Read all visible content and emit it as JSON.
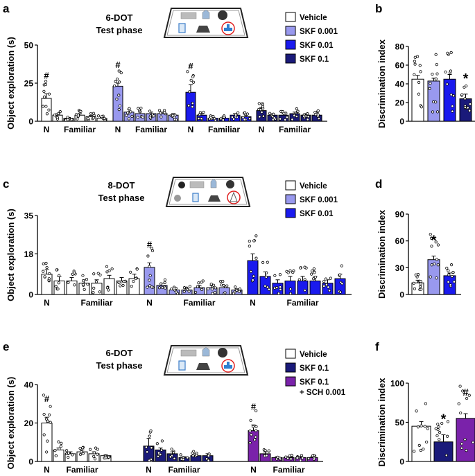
{
  "colors": {
    "vehicle": "#ffffff",
    "skf0001": "#9999ee",
    "skf001": "#1a1aee",
    "skf01": "#1a1a7a",
    "sch": "#7a22aa"
  },
  "icons": {
    "maze_a": "six-object-arena-icon",
    "maze_c": "eight-object-arena-icon",
    "maze_e": "six-object-arena-icon"
  },
  "panels": [
    {
      "letter": "a",
      "title_line1": "6-DOT",
      "title_line2": "Test phase",
      "legend": [
        {
          "label": "Vehicle",
          "color": "#ffffff"
        },
        {
          "label": "SKF 0.001",
          "color": "#9999ee"
        },
        {
          "label": "SKF 0.01",
          "color": "#1a1aee"
        },
        {
          "label": "SKF 0.1",
          "color": "#1a1a7a"
        }
      ],
      "chart_data": {
        "type": "bar",
        "ylabel": "Object exploration (s)",
        "ylim": [
          0,
          50
        ],
        "yticks": [
          0,
          25,
          50
        ],
        "group_labels": {
          "novel": "N",
          "familiar": "Familiar"
        },
        "groups": [
          {
            "name": "Vehicle",
            "color": "#ffffff",
            "values": [
              15,
              4,
              2,
              4,
              3,
              2
            ],
            "errors": [
              3,
              1,
              0.5,
              1,
              0.8,
              0.5
            ],
            "hash": true
          },
          {
            "name": "SKF 0.001",
            "color": "#9999ee",
            "values": [
              23,
              6,
              5,
              5,
              5,
              4
            ],
            "errors": [
              2,
              2,
              1,
              1,
              1,
              1
            ],
            "hash": true
          },
          {
            "name": "SKF 0.01",
            "color": "#1a1aee",
            "values": [
              19,
              4,
              2,
              2,
              4,
              3
            ],
            "errors": [
              5,
              1,
              0.5,
              0.5,
              1,
              1
            ],
            "hash": true
          },
          {
            "name": "SKF 0.1",
            "color": "#1a1a7a",
            "values": [
              7,
              4,
              4,
              5,
              4,
              4
            ],
            "errors": [
              2,
              1,
              1,
              1,
              1,
              1
            ],
            "hash": false
          }
        ]
      }
    },
    {
      "letter": "b",
      "chart_data": {
        "type": "bar",
        "ylabel": "Discrimination index",
        "ylim": [
          0,
          80
        ],
        "yticks": [
          0,
          20,
          40,
          60,
          80
        ],
        "bars": [
          {
            "name": "Vehicle",
            "color": "#ffffff",
            "value": 45,
            "error": 4,
            "mark": ""
          },
          {
            "name": "SKF 0.001",
            "color": "#9999ee",
            "value": 43,
            "error": 3,
            "mark": ""
          },
          {
            "name": "SKF 0.01",
            "color": "#1a1aee",
            "value": 45,
            "error": 5,
            "mark": ""
          },
          {
            "name": "SKF 0.1",
            "color": "#1a1a7a",
            "value": 24,
            "error": 5,
            "mark": "*"
          }
        ]
      }
    },
    {
      "letter": "c",
      "title_line1": "8-DOT",
      "title_line2": "Test phase",
      "legend": [
        {
          "label": "Vehicle",
          "color": "#ffffff"
        },
        {
          "label": "SKF 0.001",
          "color": "#9999ee"
        },
        {
          "label": "SKF 0.01",
          "color": "#1a1aee"
        }
      ],
      "chart_data": {
        "type": "bar",
        "ylabel": "Object exploration (s)",
        "ylim": [
          0,
          35
        ],
        "yticks": [
          0,
          18,
          35
        ],
        "group_labels": {
          "novel": "N",
          "familiar": "Familiar"
        },
        "groups": [
          {
            "name": "Vehicle",
            "color": "#ffffff",
            "values": [
              9,
              6,
              6,
              5,
              5,
              7,
              6,
              7
            ],
            "errors": [
              2,
              2,
              1.5,
              1.5,
              1.5,
              1.5,
              1.5,
              2
            ],
            "hash": false
          },
          {
            "name": "SKF 0.001",
            "color": "#9999ee",
            "values": [
              12,
              4,
              2,
              2,
              3,
              3,
              3,
              2
            ],
            "errors": [
              2,
              1,
              0.5,
              0.5,
              1,
              1,
              1,
              0.5
            ],
            "hash": true
          },
          {
            "name": "SKF 0.01",
            "color": "#1a1aee",
            "values": [
              15,
              8,
              5,
              6,
              6,
              6,
              5,
              7
            ],
            "errors": [
              3,
              2,
              1.5,
              2,
              2,
              2,
              1.5,
              2
            ],
            "hash": false
          }
        ]
      }
    },
    {
      "letter": "d",
      "chart_data": {
        "type": "bar",
        "ylabel": "Discrimination index",
        "ylim": [
          0,
          90
        ],
        "yticks": [
          0,
          30,
          60,
          90
        ],
        "bars": [
          {
            "name": "Vehicle",
            "color": "#ffffff",
            "value": 13,
            "error": 3,
            "mark": ""
          },
          {
            "name": "SKF 0.001",
            "color": "#9999ee",
            "value": 39,
            "error": 4,
            "mark": "*"
          },
          {
            "name": "SKF 0.01",
            "color": "#1a1aee",
            "value": 21,
            "error": 3,
            "mark": ""
          }
        ]
      }
    },
    {
      "letter": "e",
      "title_line1": "6-DOT",
      "title_line2": "Test phase",
      "legend": [
        {
          "label": "Vehicle",
          "color": "#ffffff"
        },
        {
          "label": "SKF 0.1",
          "color": "#1a1a7a"
        },
        {
          "label": "SKF 0.1",
          "color": "#7a22aa",
          "label2": "+ SCH 0.001"
        }
      ],
      "chart_data": {
        "type": "bar",
        "ylabel": "Object exploration (s)",
        "ylim": [
          0,
          40
        ],
        "yticks": [
          0,
          20,
          40
        ],
        "group_labels": {
          "novel": "N",
          "familiar": "Familiar"
        },
        "groups": [
          {
            "name": "Vehicle",
            "color": "#ffffff",
            "values": [
              20,
              6,
              4,
              5,
              4,
              3
            ],
            "errors": [
              3,
              1,
              1,
              1,
              1,
              0.5
            ],
            "hash": true
          },
          {
            "name": "SKF 0.1",
            "color": "#1a1a7a",
            "values": [
              8,
              6,
              4,
              2,
              3,
              3
            ],
            "errors": [
              4,
              1,
              1,
              0.5,
              1,
              1
            ],
            "hash": false
          },
          {
            "name": "SKF 0.1 + SCH 0.001",
            "color": "#7a22aa",
            "values": [
              16,
              4,
              2,
              2,
              2,
              2
            ],
            "errors": [
              3,
              1,
              0.5,
              0.5,
              0.5,
              0.5
            ],
            "hash": true
          }
        ]
      }
    },
    {
      "letter": "f",
      "chart_data": {
        "type": "bar",
        "ylabel": "Discrimination index",
        "ylim": [
          0,
          100
        ],
        "yticks": [
          0,
          50,
          100
        ],
        "bars": [
          {
            "name": "Vehicle",
            "color": "#ffffff",
            "value": 45,
            "error": 6,
            "mark": ""
          },
          {
            "name": "SKF 0.1",
            "color": "#1a1a7a",
            "value": 25,
            "error": 9,
            "mark": "*"
          },
          {
            "name": "SKF 0.1 + SCH 0.001",
            "color": "#7a22aa",
            "value": 55,
            "error": 6,
            "mark": "#"
          }
        ]
      }
    }
  ]
}
